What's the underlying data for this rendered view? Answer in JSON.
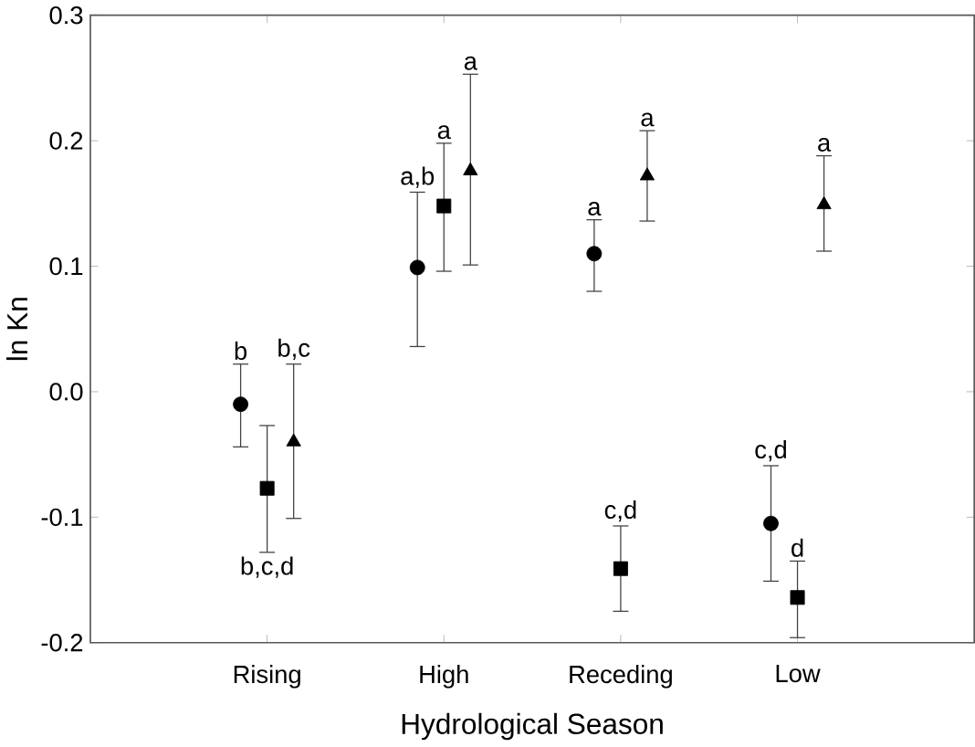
{
  "chart_data": {
    "type": "scatter",
    "xlabel": "Hydrological Season",
    "ylabel": "ln Kn",
    "categories": [
      "Rising",
      "High",
      "Receding",
      "Low"
    ],
    "ylim": [
      -0.2,
      0.3
    ],
    "yticks": [
      -0.2,
      -0.1,
      {
        "value": 0,
        "label": "0.0"
      },
      0.1,
      0.2,
      0.3
    ],
    "series": [
      {
        "marker": "circle",
        "color": "#000000",
        "values": [
          -0.01,
          0.099,
          0.11,
          -0.105
        ],
        "errors": [
          [
            -0.044,
            0.022
          ],
          [
            0.036,
            0.159
          ],
          [
            0.08,
            0.137
          ],
          [
            -0.151,
            -0.059
          ]
        ]
      },
      {
        "marker": "square",
        "color": "#000000",
        "values": [
          -0.077,
          0.148,
          -0.141,
          -0.164
        ],
        "errors": [
          [
            -0.128,
            -0.027
          ],
          [
            0.096,
            0.198
          ],
          [
            -0.175,
            -0.107
          ],
          [
            -0.196,
            -0.135
          ]
        ]
      },
      {
        "marker": "triangle",
        "color": "#000000",
        "values": [
          -0.04,
          0.176,
          0.172,
          0.149
        ],
        "errors": [
          [
            -0.101,
            0.022
          ],
          [
            0.101,
            0.253
          ],
          [
            0.136,
            0.208
          ],
          [
            0.112,
            0.188
          ]
        ]
      }
    ],
    "annotations": [
      "b",
      "b,c,d",
      "b,c",
      "a,b",
      "a",
      "a",
      "a",
      "c,d",
      "a",
      "c,d",
      "d",
      "a"
    ]
  }
}
